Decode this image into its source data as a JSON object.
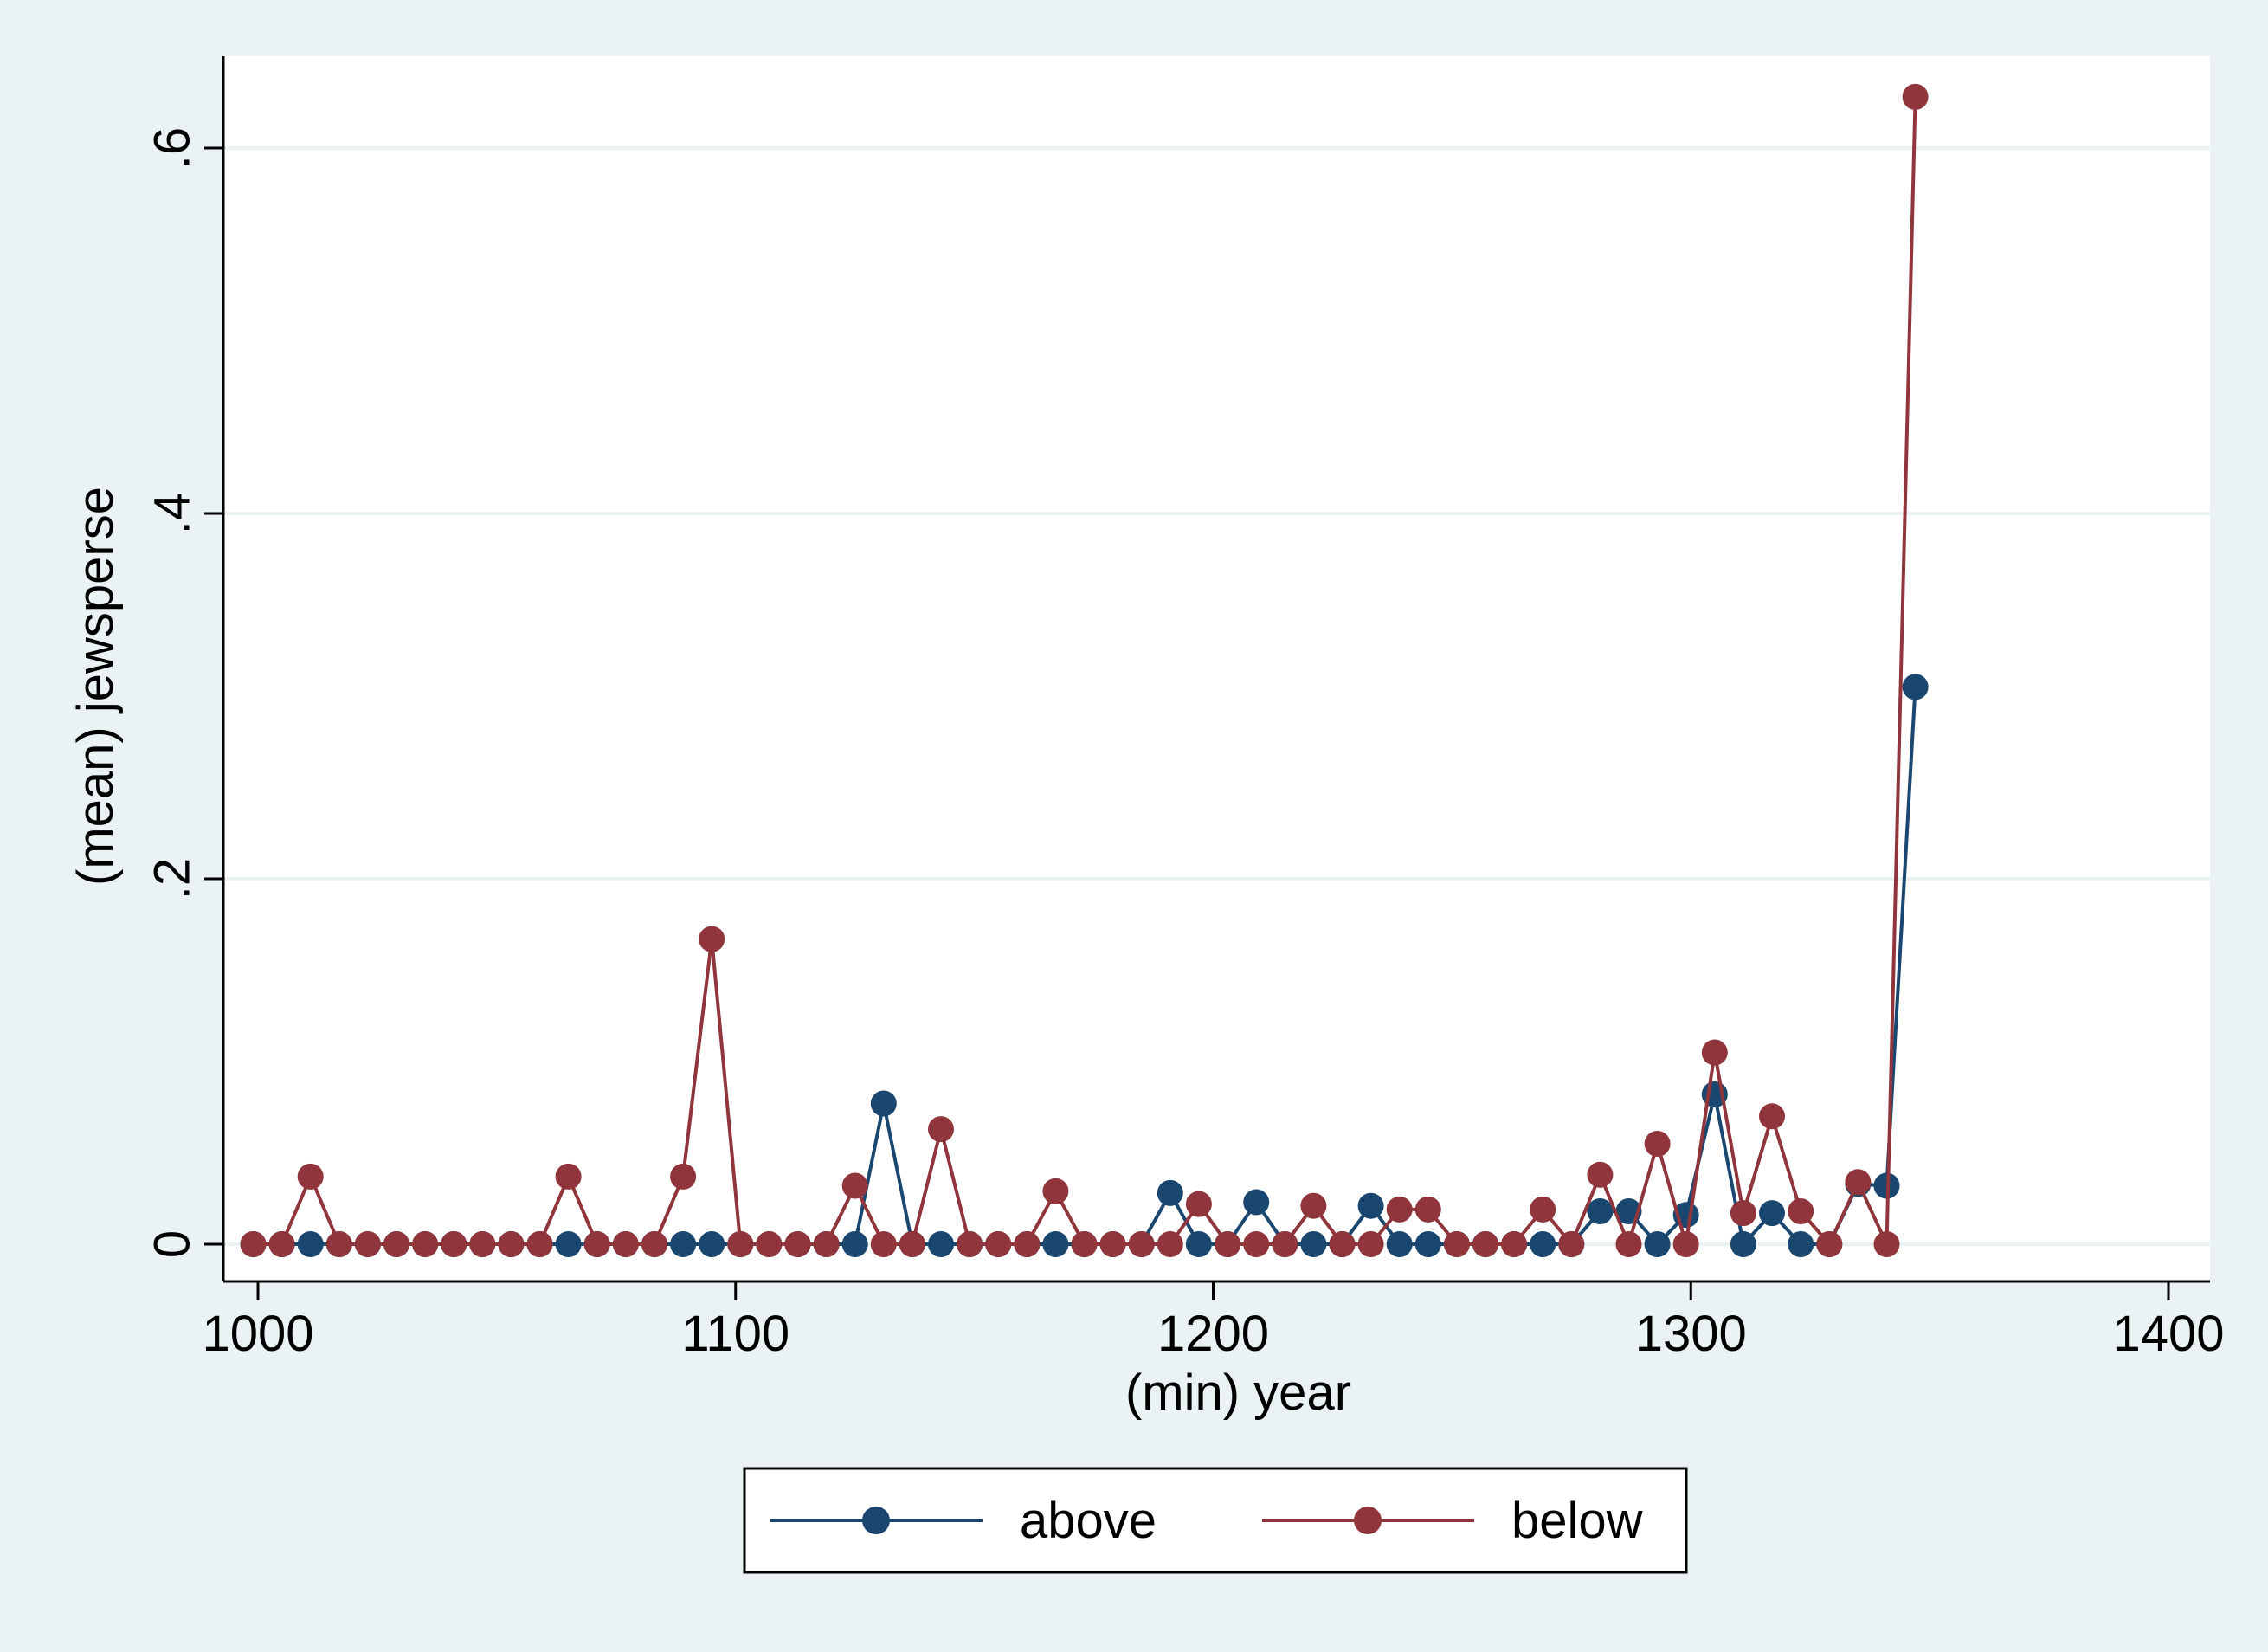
{
  "chart_data": {
    "type": "line",
    "title": "",
    "xlabel": "(min) year",
    "ylabel": "(mean) jewsperse",
    "xlim": [
      992,
      1408
    ],
    "ylim": [
      -0.1,
      0.65
    ],
    "xticks": [
      1000,
      1100,
      1200,
      1300,
      1400
    ],
    "yticks": [
      0,
      0.2,
      0.4,
      0.6
    ],
    "xtick_labels": [
      "1000",
      "1100",
      "1200",
      "1300",
      "1400"
    ],
    "ytick_labels": [
      "0",
      ".2",
      ".4",
      ".6"
    ],
    "grid": "horizontal",
    "legend_position": "bottom",
    "markers": "circle",
    "series": [
      {
        "name": "above",
        "color": "#1a476f",
        "points": [
          [
            999,
            0
          ],
          [
            1005,
            0
          ],
          [
            1011,
            0
          ],
          [
            1017,
            0
          ],
          [
            1023,
            0
          ],
          [
            1029,
            0
          ],
          [
            1035,
            0
          ],
          [
            1041,
            0
          ],
          [
            1047,
            0
          ],
          [
            1053,
            0
          ],
          [
            1059,
            0
          ],
          [
            1065,
            0
          ],
          [
            1071,
            0
          ],
          [
            1077,
            0
          ],
          [
            1083,
            0
          ],
          [
            1089,
            0
          ],
          [
            1095,
            0
          ],
          [
            1101,
            0
          ],
          [
            1107,
            0
          ],
          [
            1113,
            0
          ],
          [
            1119,
            0
          ],
          [
            1125,
            0
          ],
          [
            1131,
            0.077
          ],
          [
            1137,
            0
          ],
          [
            1143,
            0
          ],
          [
            1149,
            0
          ],
          [
            1155,
            0
          ],
          [
            1161,
            0
          ],
          [
            1167,
            0
          ],
          [
            1173,
            0
          ],
          [
            1179,
            0
          ],
          [
            1185,
            0
          ],
          [
            1191,
            0.028
          ],
          [
            1197,
            0
          ],
          [
            1203,
            0
          ],
          [
            1209,
            0.023
          ],
          [
            1215,
            0
          ],
          [
            1221,
            0
          ],
          [
            1227,
            0
          ],
          [
            1233,
            0.021
          ],
          [
            1239,
            0
          ],
          [
            1245,
            0
          ],
          [
            1251,
            0
          ],
          [
            1257,
            0
          ],
          [
            1263,
            0
          ],
          [
            1269,
            0
          ],
          [
            1275,
            0
          ],
          [
            1281,
            0.018
          ],
          [
            1287,
            0.018
          ],
          [
            1293,
            0
          ],
          [
            1299,
            0.016
          ],
          [
            1305,
            0.082
          ],
          [
            1311,
            0
          ],
          [
            1317,
            0.017
          ],
          [
            1323,
            0
          ],
          [
            1329,
            0
          ],
          [
            1335,
            0.033
          ],
          [
            1341,
            0.032
          ],
          [
            1347,
            0.305
          ]
        ]
      },
      {
        "name": "below",
        "color": "#90353b",
        "points": [
          [
            999,
            0
          ],
          [
            1005,
            0
          ],
          [
            1011,
            0.037
          ],
          [
            1017,
            0
          ],
          [
            1023,
            0
          ],
          [
            1029,
            0
          ],
          [
            1035,
            0
          ],
          [
            1041,
            0
          ],
          [
            1047,
            0
          ],
          [
            1053,
            0
          ],
          [
            1059,
            0
          ],
          [
            1065,
            0.037
          ],
          [
            1071,
            0
          ],
          [
            1077,
            0
          ],
          [
            1083,
            0
          ],
          [
            1089,
            0.037
          ],
          [
            1095,
            0.167
          ],
          [
            1101,
            0
          ],
          [
            1107,
            0
          ],
          [
            1113,
            0
          ],
          [
            1119,
            0
          ],
          [
            1125,
            0.032
          ],
          [
            1131,
            0
          ],
          [
            1137,
            0
          ],
          [
            1143,
            0.063
          ],
          [
            1149,
            0
          ],
          [
            1155,
            0
          ],
          [
            1161,
            0
          ],
          [
            1167,
            0.029
          ],
          [
            1173,
            0
          ],
          [
            1179,
            0
          ],
          [
            1185,
            0
          ],
          [
            1191,
            0
          ],
          [
            1197,
            0.022
          ],
          [
            1203,
            0
          ],
          [
            1209,
            0
          ],
          [
            1215,
            0
          ],
          [
            1221,
            0.021
          ],
          [
            1227,
            0
          ],
          [
            1233,
            0
          ],
          [
            1239,
            0.019
          ],
          [
            1245,
            0.019
          ],
          [
            1251,
            0
          ],
          [
            1257,
            0
          ],
          [
            1263,
            0
          ],
          [
            1269,
            0.019
          ],
          [
            1275,
            0
          ],
          [
            1281,
            0.038
          ],
          [
            1287,
            0
          ],
          [
            1293,
            0.055
          ],
          [
            1299,
            0
          ],
          [
            1305,
            0.105
          ],
          [
            1311,
            0.017
          ],
          [
            1317,
            0.07
          ],
          [
            1323,
            0.018
          ],
          [
            1329,
            0
          ],
          [
            1335,
            0.034
          ],
          [
            1341,
            0
          ],
          [
            1347,
            0.628
          ]
        ]
      }
    ]
  }
}
